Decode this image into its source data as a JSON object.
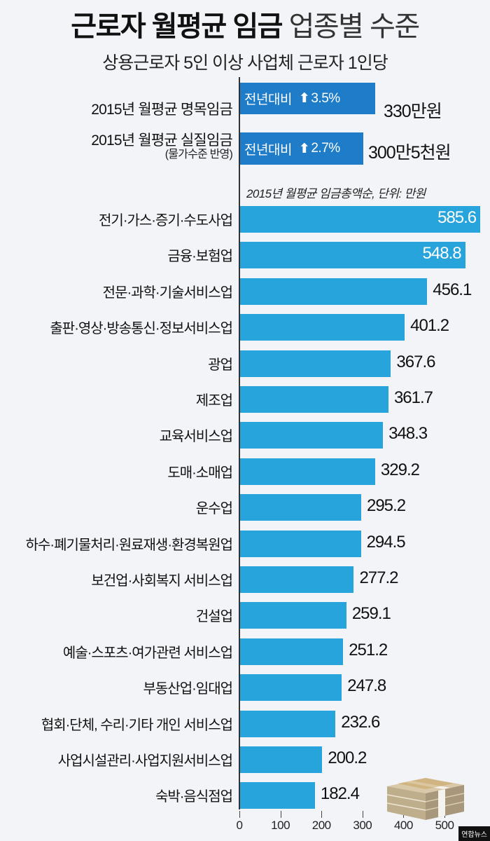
{
  "header": {
    "title_bold": "근로자 월평균 임금",
    "title_light": "업종별 수준",
    "subtitle": "상용근로자 5인 이상 사업체 근로자 1인당"
  },
  "summary": [
    {
      "label": "2015년 월평균 명목임금",
      "sublabel": "",
      "box_prefix": "전년대비",
      "arrow": "⬆",
      "change": "3.5%",
      "value": "330만원"
    },
    {
      "label": "2015년 월평균 실질임금",
      "sublabel": "(물가수준 반영)",
      "box_prefix": "전년대비",
      "arrow": "⬆",
      "change": "2.7%",
      "value": "300만5천원"
    }
  ],
  "unit_note": "2015년 월평균 임금총액순, 단위: 만원",
  "colors": {
    "bar": "#28a4dc",
    "summary_box": "#1e7cc8",
    "background": "#f2f4f8"
  },
  "watermark": "연합뉴스",
  "chart_data": {
    "type": "bar",
    "orientation": "horizontal",
    "title": "근로자 월평균 임금 업종별 수준",
    "subtitle": "상용근로자 5인 이상 사업체 근로자 1인당",
    "xlabel": "",
    "ylabel": "",
    "unit": "만원",
    "note": "2015년 월평균 임금총액순, 단위: 만원",
    "categories": [
      "전기·가스·증기·수도사업",
      "금융·보험업",
      "전문·과학·기술서비스업",
      "출판·영상·방송통신·정보서비스업",
      "광업",
      "제조업",
      "교육서비스업",
      "도매·소매업",
      "운수업",
      "하수·폐기물처리·원료재생·환경복원업",
      "보건업·사회복지 서비스업",
      "건설업",
      "예술·스포츠·여가관련 서비스업",
      "부동산업·임대업",
      "협회·단체, 수리·기타 개인 서비스업",
      "사업시설관리·사업지원서비스업",
      "숙박·음식점업"
    ],
    "values": [
      585.6,
      548.8,
      456.1,
      401.2,
      367.6,
      361.7,
      348.3,
      329.2,
      295.2,
      294.5,
      277.2,
      259.1,
      251.2,
      247.8,
      232.6,
      200.2,
      182.4
    ],
    "value_labels": [
      "585.6",
      "548.8",
      "456.1",
      "401.2",
      "367.6",
      "361.7",
      "348.3",
      "329.2",
      "295.2",
      "294.5",
      "277.2",
      "259.1",
      "251.2",
      "247.8",
      "232.6",
      "200.2",
      "182.4"
    ],
    "xlim": [
      0,
      500
    ],
    "xticks": [
      "0",
      "100",
      "200",
      "300",
      "400",
      "500"
    ],
    "grid": false,
    "summary": {
      "nominal_wage_2015": {
        "label": "2015년 월평균 명목임금",
        "yoy_change": "3.5%",
        "value": "330만원"
      },
      "real_wage_2015": {
        "label": "2015년 월평균 실질임금 (물가수준 반영)",
        "yoy_change": "2.7%",
        "value": "300만5천원"
      }
    }
  }
}
